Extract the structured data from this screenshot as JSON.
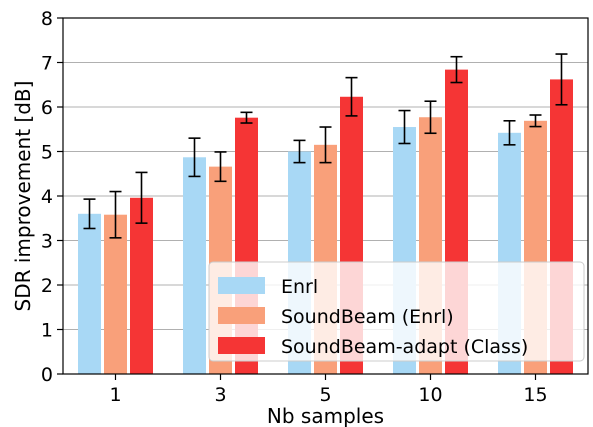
{
  "chart_data": {
    "type": "bar",
    "title": "",
    "xlabel": "Nb samples",
    "ylabel": "SDR improvement [dB]",
    "categories": [
      "1",
      "3",
      "5",
      "10",
      "15"
    ],
    "ylim": [
      0,
      8
    ],
    "yticks": [
      0,
      1,
      2,
      3,
      4,
      5,
      6,
      7,
      8
    ],
    "grid": "horizontal",
    "legend_position": "lower-right",
    "series": [
      {
        "name": "Enrl",
        "color": "#a8d8f5",
        "values": [
          3.6,
          4.87,
          5.0,
          5.55,
          5.42
        ],
        "errors": [
          0.33,
          0.43,
          0.25,
          0.37,
          0.27
        ]
      },
      {
        "name": "SoundBeam (Enrl)",
        "color": "#f9a07a",
        "values": [
          3.58,
          4.66,
          5.15,
          5.77,
          5.69
        ],
        "errors": [
          0.52,
          0.33,
          0.4,
          0.36,
          0.13
        ]
      },
      {
        "name": "SoundBeam-adapt (Class)",
        "color": "#f53535",
        "values": [
          3.96,
          5.76,
          6.23,
          6.84,
          6.62
        ],
        "errors": [
          0.57,
          0.12,
          0.43,
          0.29,
          0.57
        ]
      }
    ]
  }
}
